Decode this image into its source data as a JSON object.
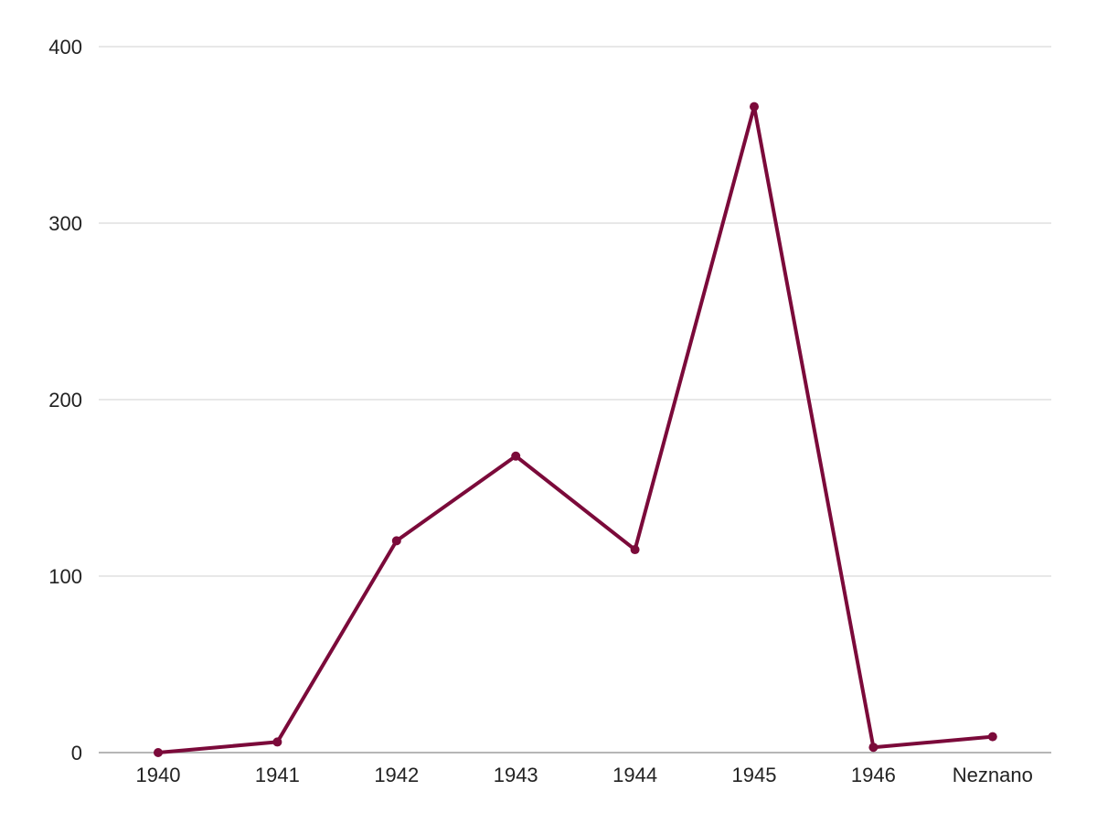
{
  "chart_data": {
    "type": "line",
    "categories": [
      "1940",
      "1941",
      "1942",
      "1943",
      "1944",
      "1945",
      "1946",
      "Neznano"
    ],
    "series": [
      {
        "values": [
          0,
          6,
          120,
          168,
          115,
          366,
          3,
          9
        ]
      }
    ],
    "y_ticks": [
      "0",
      "100",
      "200",
      "300",
      "400"
    ],
    "ylim": [
      0,
      400
    ],
    "grid": true,
    "line_color": "#7b0a3a",
    "grid_color": "#d9d9d9",
    "axis_color": "#9e9e9e"
  }
}
